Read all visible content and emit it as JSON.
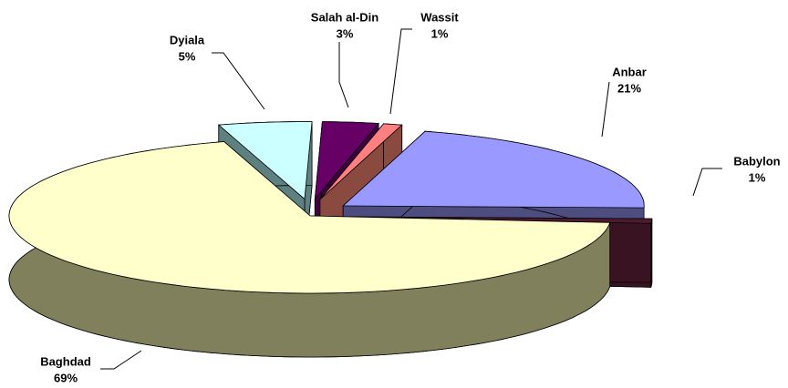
{
  "chart_data": {
    "type": "pie",
    "categories": [
      "Babylon",
      "Anbar",
      "Wassit",
      "Salah al-Din",
      "Dyiala",
      "Baghdad"
    ],
    "values": [
      1,
      21,
      1,
      3,
      5,
      69
    ],
    "value_labels": [
      "1%",
      "21%",
      "1%",
      "3%",
      "5%",
      "69%"
    ],
    "colors": [
      "#4d1a2e",
      "#9999ff",
      "#ff8080",
      "#660066",
      "#ccffff",
      "#ffffcc"
    ],
    "side_colors": [
      "#3a1322",
      "#4d4d80",
      "#8b4a40",
      "#400040",
      "#5f8080",
      "#80805c"
    ]
  }
}
